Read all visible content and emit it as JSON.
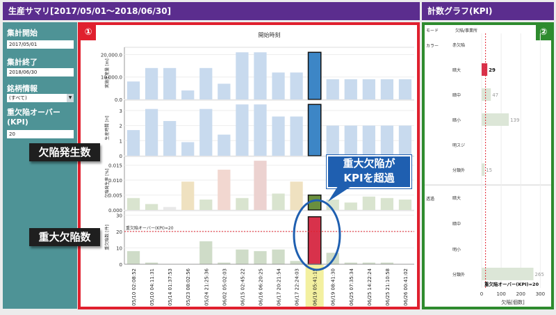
{
  "header": {
    "title": "生産サマリ[2017/05/01～2018/06/30]",
    "graph_title": "計数グラフ(KPI)"
  },
  "sidebar": {
    "start_label": "集計開始",
    "start_value": "2017/05/01",
    "end_label": "集計終了",
    "end_value": "2018/06/30",
    "brand_label": "銘柄情報",
    "brand_value": "(すべて)",
    "kpi_label": "重欠陥オーバー(KPI)",
    "kpi_value": "20"
  },
  "panel1": {
    "badge": "①",
    "chart_title": "開始時刻",
    "ylabels": [
      "実施生産量 [m]",
      "生産時間 [H]",
      "欠陥発生率 [%]",
      "重欠陥数 [件]"
    ],
    "threshold_label": "重欠陥オーバー(KPI)=20"
  },
  "panel2": {
    "badge": "②",
    "col1": "モード",
    "col2": "欠陥/事業所",
    "group1": "カラー",
    "group2": "透過",
    "xlabel": "欠陥[個数]",
    "threshold_label": "重欠陥オーバー(KPI)=20"
  },
  "callouts": {
    "defect_rate": "欠陥発生数",
    "heavy_defects": "重大欠陥数",
    "kpi_over": "重大欠陥が\nKPIを超過"
  },
  "colors": {
    "title": "#5b2d8e",
    "sidebar": "#4e9396",
    "panel1_border": "#e0202e",
    "panel2_border": "#2e8b2e",
    "highlight_bar": "#3d86c6",
    "over_bar": "#d8324b"
  },
  "chart_data": [
    {
      "type": "bar",
      "categories": [
        "05/10 02:08:52",
        "05/10 04:11:31",
        "05/14 01:37:53",
        "05/23 08:02:56",
        "05/24 21:25:36",
        "06/02 05:02:03",
        "06/15 02:45:22",
        "06/16 06:20:25",
        "06/17 20:21:54",
        "06/17 22:24:03",
        "06/19 05:41:15",
        "06/19 08:41:30",
        "06/25 07:35:34",
        "06/25 14:22:24",
        "06/25 21:10:58",
        "06/26 00:41:02"
      ],
      "highlight_index": 10,
      "series": [
        {
          "name": "実施生産量 [m]",
          "values": [
            8000,
            14000,
            14000,
            4000,
            14000,
            7000,
            21000,
            21000,
            12000,
            12000,
            21000,
            9000,
            9000,
            9000,
            9000,
            9000
          ],
          "ylim": [
            0,
            22000
          ],
          "ticks": [
            "0.0",
            "10,000.0",
            "20,000.0"
          ],
          "tick_values": [
            0,
            10000,
            20000
          ]
        },
        {
          "name": "生産時間 [H]",
          "values": [
            1.7,
            3.1,
            2.3,
            0.9,
            3.1,
            1.4,
            3.4,
            3.4,
            2.6,
            2.6,
            3.4,
            2.0,
            2.0,
            2.0,
            2.0,
            2.0
          ],
          "ylim": [
            0,
            3.5
          ],
          "ticks": [
            "0",
            "1",
            "2",
            "3"
          ],
          "tick_values": [
            0,
            1,
            2,
            3
          ]
        },
        {
          "name": "欠陥発生率 [%]",
          "values": [
            0.004,
            0.002,
            0.001,
            0.0095,
            0.0035,
            0.0135,
            0.004,
            0.0165,
            0.0055,
            0.0095,
            0.005,
            0.0035,
            0.0025,
            0.0045,
            0.004,
            0.0035
          ],
          "ylim": [
            0,
            0.017
          ],
          "ticks": [
            "0.000",
            "0.005",
            "0.010",
            "0.015"
          ],
          "tick_values": [
            0,
            0.005,
            0.01,
            0.015
          ]
        },
        {
          "name": "重欠陥数 [件]",
          "values": [
            8,
            1,
            0,
            0,
            14,
            1,
            9,
            8,
            9,
            2,
            29,
            7,
            1,
            1,
            1,
            0
          ],
          "ylim": [
            0,
            31
          ],
          "ticks": [
            "0",
            "10",
            "20",
            "30"
          ],
          "tick_values": [
            0,
            10,
            20,
            30
          ],
          "threshold": 20
        }
      ]
    },
    {
      "type": "bar",
      "orientation": "horizontal",
      "categories": [
        "赤欠陥",
        "暗大",
        "暗中",
        "暗小",
        "明スジ",
        "分類外",
        "暗大",
        "暗中",
        "明小",
        "分類外"
      ],
      "values": [
        0,
        29,
        47,
        139,
        0,
        15,
        0,
        0,
        0,
        265
      ],
      "labels": [
        "",
        "29",
        "47",
        "139",
        "",
        "15",
        "",
        "",
        "",
        "265"
      ],
      "xlim": [
        0,
        320
      ],
      "ticks": [
        "0",
        "100",
        "200",
        "300"
      ],
      "tick_values": [
        0,
        100,
        200,
        300
      ],
      "threshold": 20
    }
  ]
}
